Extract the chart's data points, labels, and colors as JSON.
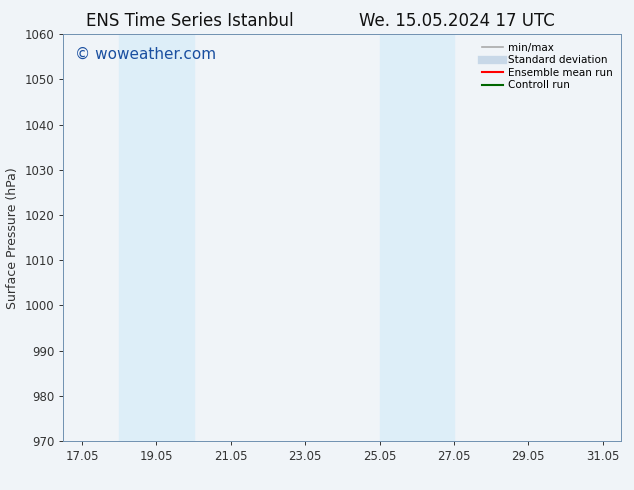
{
  "title_left": "ENS Time Series Istanbul",
  "title_right": "We. 15.05.2024 17 UTC",
  "ylabel": "Surface Pressure (hPa)",
  "ylim": [
    970,
    1060
  ],
  "yticks": [
    970,
    980,
    990,
    1000,
    1010,
    1020,
    1030,
    1040,
    1050,
    1060
  ],
  "xlim_start": 16.55,
  "xlim_end": 31.55,
  "xtick_labels": [
    "17.05",
    "19.05",
    "21.05",
    "23.05",
    "25.05",
    "27.05",
    "29.05",
    "31.05"
  ],
  "xtick_positions": [
    17.05,
    19.05,
    21.05,
    23.05,
    25.05,
    27.05,
    29.05,
    31.05
  ],
  "shaded_bands": [
    {
      "x_start": 18.05,
      "x_end": 19.05
    },
    {
      "x_start": 19.05,
      "x_end": 20.05
    },
    {
      "x_start": 25.05,
      "x_end": 26.05
    },
    {
      "x_start": 26.05,
      "x_end": 27.05
    }
  ],
  "shaded_color": "#ddeef8",
  "watermark_text": "© woweather.com",
  "watermark_color": "#1a4fa0",
  "watermark_fontsize": 11,
  "legend_items": [
    {
      "label": "min/max",
      "color": "#aaaaaa",
      "lw": 1.2
    },
    {
      "label": "Standard deviation",
      "color": "#c8d8e8",
      "lw": 6
    },
    {
      "label": "Ensemble mean run",
      "color": "#ff0000",
      "lw": 1.5
    },
    {
      "label": "Controll run",
      "color": "#006600",
      "lw": 1.5
    }
  ],
  "bg_color": "#f0f4f8",
  "plot_bg_color": "#f0f4f8",
  "spine_color": "#7090b0",
  "tick_color": "#333333",
  "title_fontsize": 12,
  "axis_label_fontsize": 9,
  "tick_fontsize": 8.5,
  "legend_fontsize": 7.5
}
